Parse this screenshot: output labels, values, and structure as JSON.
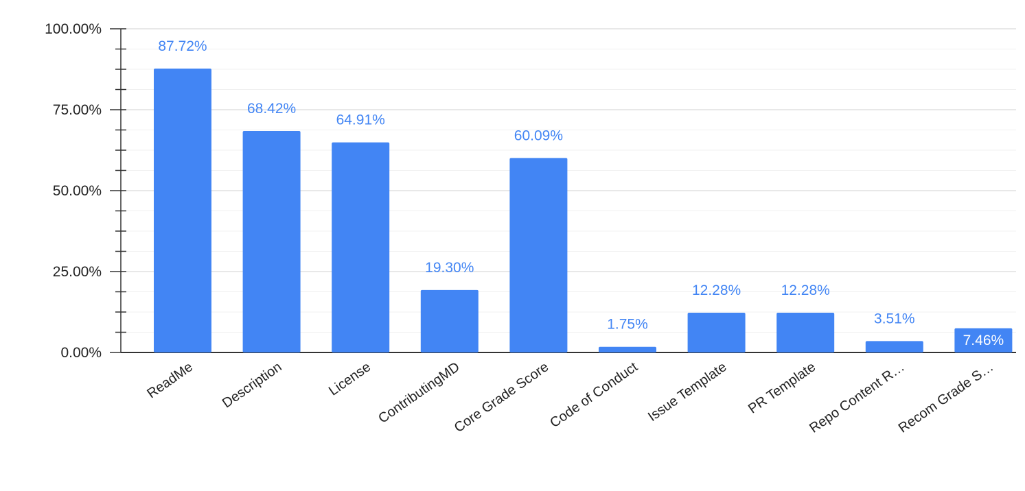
{
  "chart_data": {
    "type": "bar",
    "title": "",
    "xlabel": "",
    "ylabel": "",
    "categories": [
      "ReadMe",
      "Description",
      "License",
      "ContributingMD",
      "Core Grade Score",
      "Code of Conduct",
      "Issue Template",
      "PR Template",
      "Repo Content R…",
      "Recom Grade S…"
    ],
    "values": [
      87.72,
      68.42,
      64.91,
      19.3,
      60.09,
      1.75,
      12.28,
      12.28,
      3.51,
      7.46
    ],
    "data_labels": [
      "87.72%",
      "68.42%",
      "64.91%",
      "19.30%",
      "60.09%",
      "1.75%",
      "12.28%",
      "12.28%",
      "3.51%",
      "7.46%"
    ],
    "y_ticks": [
      0,
      25,
      50,
      75,
      100
    ],
    "y_tick_labels": [
      "0.00%",
      "25.00%",
      "50.00%",
      "75.00%",
      "100.00%"
    ],
    "ylim": [
      0,
      100
    ],
    "grid": true,
    "legend": "none",
    "colors": {
      "bar": "#4285f4",
      "data_label": "#4285f4",
      "grid": "#e0e0e0",
      "axis": "#333333",
      "tick_text": "#222222"
    }
  }
}
